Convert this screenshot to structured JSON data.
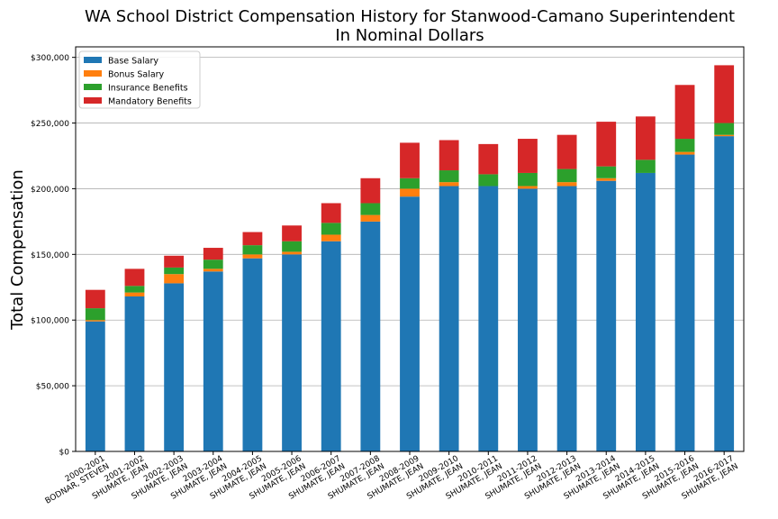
{
  "chart_data": {
    "type": "bar",
    "stacked": true,
    "title_line1": "WA School District Compensation History for Stanwood-Camano Superintendent",
    "title_line2": "In Nominal Dollars",
    "xlabel": "",
    "ylabel": "Total Compensation",
    "ylim": [
      0,
      308000
    ],
    "yticks": [
      0,
      50000,
      100000,
      150000,
      200000,
      250000,
      300000
    ],
    "ytick_labels": [
      "$0",
      "$50,000",
      "$100,000",
      "$150,000",
      "$200,000",
      "$250,000",
      "$300,000"
    ],
    "grid": "horizontal",
    "legend_position": "top-left",
    "categories": [
      [
        "2000-2001",
        "BODNAR, STEVEN"
      ],
      [
        "2001-2002",
        "SHUMATE, JEAN"
      ],
      [
        "2002-2003",
        "SHUMATE, JEAN"
      ],
      [
        "2003-2004",
        "SHUMATE, JEAN"
      ],
      [
        "2004-2005",
        "SHUMATE, JEAN"
      ],
      [
        "2005-2006",
        "SHUMATE, JEAN"
      ],
      [
        "2006-2007",
        "SHUMATE, JEAN"
      ],
      [
        "2007-2008",
        "SHUMATE, JEAN"
      ],
      [
        "2008-2009",
        "SHUMATE, JEAN"
      ],
      [
        "2009-2010",
        "SHUMATE, JEAN"
      ],
      [
        "2010-2011",
        "SHUMATE, JEAN"
      ],
      [
        "2011-2012",
        "SHUMATE, JEAN"
      ],
      [
        "2012-2013",
        "SHUMATE, JEAN"
      ],
      [
        "2013-2014",
        "SHUMATE, JEAN"
      ],
      [
        "2014-2015",
        "SHUMATE, JEAN"
      ],
      [
        "2015-2016",
        "SHUMATE, JEAN"
      ],
      [
        "2016-2017",
        "SHUMATE, JEAN"
      ]
    ],
    "series": [
      {
        "name": "Base Salary",
        "color": "#1f77b4",
        "values": [
          99000,
          118000,
          128000,
          137000,
          147000,
          150000,
          160000,
          175000,
          194000,
          202000,
          202000,
          200000,
          202000,
          206000,
          212000,
          226000,
          240000
        ]
      },
      {
        "name": "Bonus Salary",
        "color": "#ff7f0e",
        "values": [
          1000,
          3000,
          7000,
          2000,
          3000,
          2000,
          5000,
          5000,
          6000,
          3000,
          0,
          2000,
          3000,
          2000,
          0,
          2000,
          1000
        ]
      },
      {
        "name": "Insurance Benefits",
        "color": "#2ca02c",
        "values": [
          9000,
          5000,
          5000,
          7000,
          7000,
          8000,
          9000,
          9000,
          8000,
          9000,
          9000,
          10000,
          10000,
          9000,
          10000,
          10000,
          9000
        ]
      },
      {
        "name": "Mandatory Benefits",
        "color": "#d62728",
        "values": [
          14000,
          13000,
          9000,
          9000,
          10000,
          12000,
          15000,
          19000,
          27000,
          23000,
          23000,
          26000,
          26000,
          34000,
          33000,
          41000,
          44000
        ]
      }
    ]
  }
}
